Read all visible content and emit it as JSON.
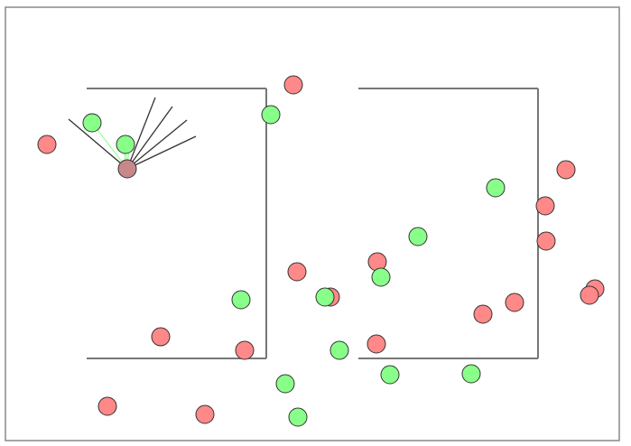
{
  "colors": {
    "background": "#ffffff",
    "border": "#888888",
    "wall": "#777777",
    "good_item": "#88ff88",
    "bad_item": "#ff8888",
    "agent": "#c88888",
    "sensor": "#333333",
    "sensor_hit_good": "#88ff88",
    "outline": "#333333"
  },
  "icons": {
    "agent": "agent-circle",
    "good": "good-item-circle",
    "bad": "bad-item-circle"
  }
}
